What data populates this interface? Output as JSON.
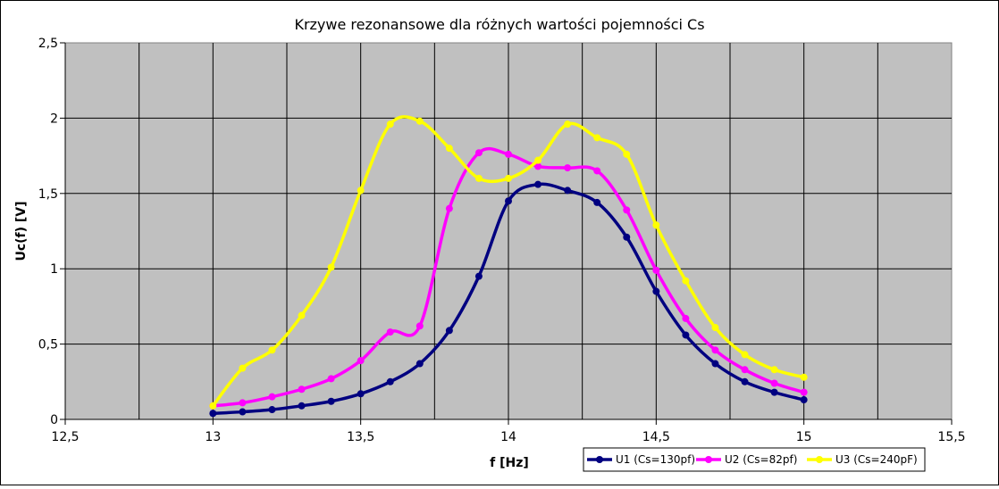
{
  "chart_data": {
    "type": "line",
    "title": "Krzywe rezonansowe dla różnych wartości pojemności Cs",
    "xlabel": "f [Hz]",
    "ylabel": "Uc(f) [V]",
    "xlim": [
      12.5,
      15.5
    ],
    "ylim": [
      0,
      2.5
    ],
    "x_ticks": [
      12.5,
      13,
      13.5,
      14,
      14.5,
      15,
      15.5
    ],
    "x_tick_labels": [
      "12,5",
      "13",
      "13,5",
      "14",
      "14,5",
      "15",
      "15,5"
    ],
    "y_ticks": [
      0,
      0.5,
      1,
      1.5,
      2,
      2.5
    ],
    "y_tick_labels": [
      "0",
      "0,5",
      "1",
      "1,5",
      "2",
      "2,5"
    ],
    "grid": true,
    "legend_position": "bottom-right",
    "x": [
      13.0,
      13.1,
      13.2,
      13.3,
      13.4,
      13.5,
      13.6,
      13.7,
      13.8,
      13.9,
      14.0,
      14.1,
      14.2,
      14.3,
      14.4,
      14.5,
      14.6,
      14.7,
      14.8,
      14.9,
      15.0
    ],
    "series": [
      {
        "name": "U1 (Cs=130pf)",
        "color": "#000080",
        "values": [
          0.04,
          0.05,
          0.065,
          0.09,
          0.12,
          0.17,
          0.25,
          0.37,
          0.59,
          0.95,
          1.45,
          1.56,
          1.52,
          1.44,
          1.21,
          0.85,
          0.56,
          0.37,
          0.25,
          0.18,
          0.13
        ]
      },
      {
        "name": "U2 (Cs=82pf)",
        "color": "#FF00FF",
        "values": [
          0.09,
          0.11,
          0.15,
          0.2,
          0.27,
          0.39,
          0.58,
          0.62,
          1.4,
          1.77,
          1.76,
          1.68,
          1.67,
          1.65,
          1.39,
          0.99,
          0.67,
          0.46,
          0.33,
          0.24,
          0.18
        ]
      },
      {
        "name": "U3 (Cs=240pF)",
        "color": "#FFFF00",
        "values": [
          0.09,
          0.34,
          0.46,
          0.69,
          1.01,
          1.52,
          1.96,
          1.98,
          1.8,
          1.6,
          1.6,
          1.72,
          1.96,
          1.87,
          1.76,
          1.29,
          0.92,
          0.61,
          0.43,
          0.33,
          0.28
        ]
      }
    ]
  }
}
